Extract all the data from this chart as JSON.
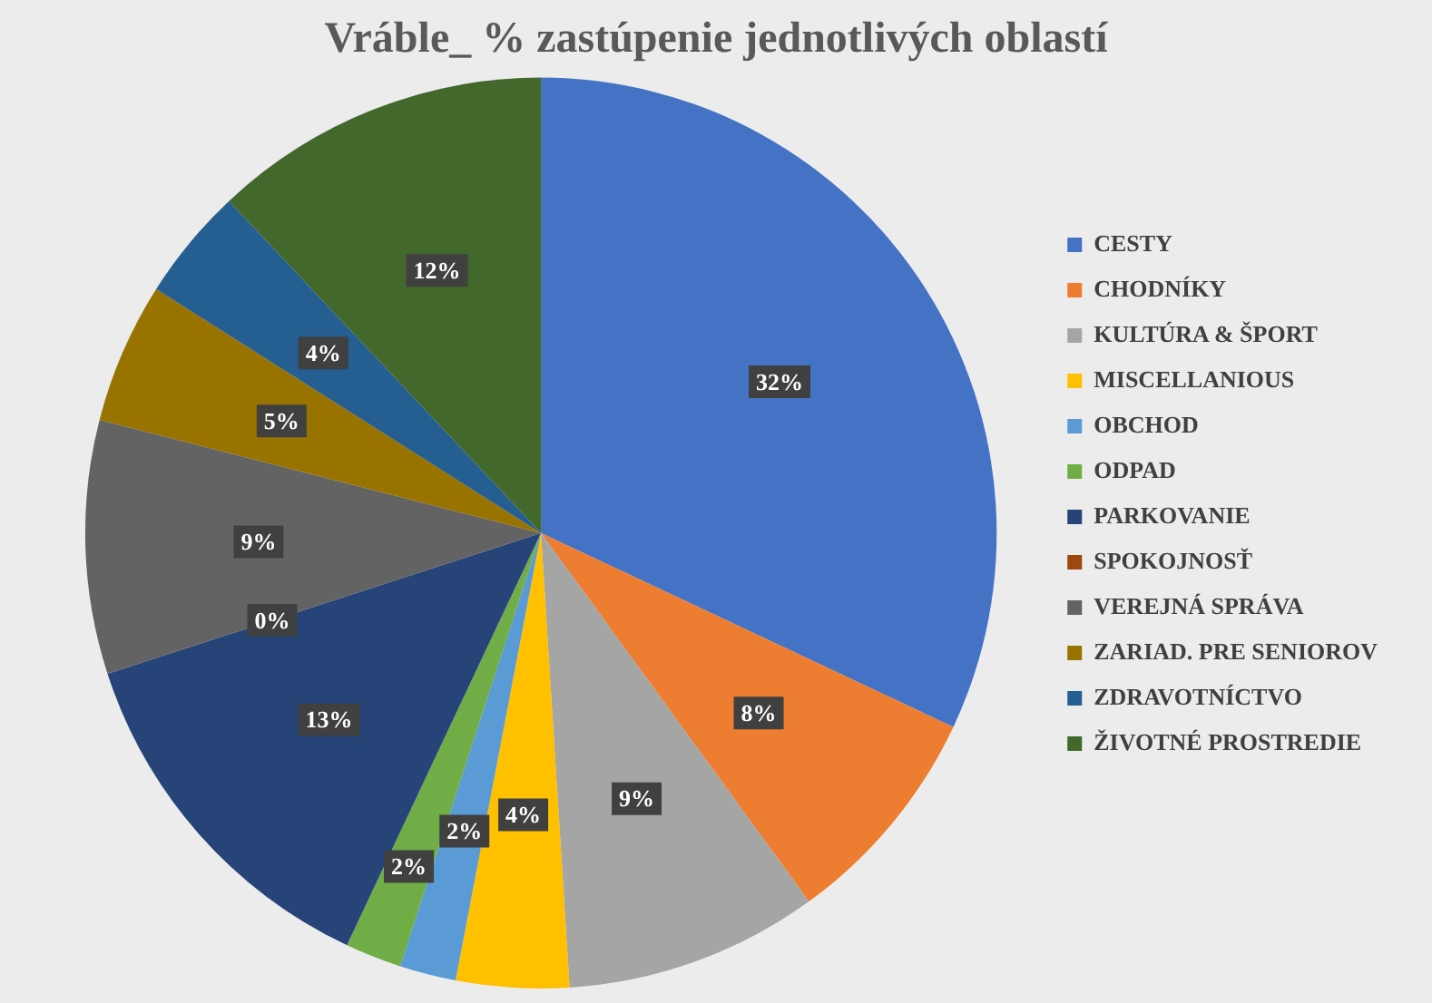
{
  "chart_data": {
    "type": "pie",
    "title": "Vráble_ % zastúpenie jednotlivých oblastí",
    "categories": [
      "CESTY",
      "CHODNÍKY",
      "KULTÚRA & ŠPORT",
      "MISCELLANIOUS",
      "OBCHOD",
      "ODPAD",
      "PARKOVANIE",
      "SPOKOJNOSŤ",
      "VEREJNÁ SPRÁVA",
      "ZARIAD. PRE SENIOROV",
      "ZDRAVOTNÍCTVO",
      "ŽIVOTNÉ PROSTREDIE"
    ],
    "values": [
      32,
      8,
      9,
      4,
      2,
      2,
      13,
      0,
      9,
      5,
      4,
      12
    ],
    "value_labels": [
      "32%",
      "8%",
      "9%",
      "4%",
      "2%",
      "2%",
      "13%",
      "0%",
      "9%",
      "5%",
      "4%",
      "12%"
    ],
    "colors": [
      "#4472c4",
      "#ed7d31",
      "#a5a5a5",
      "#ffc000",
      "#5b9bd5",
      "#70ad47",
      "#264478",
      "#9e480e",
      "#636363",
      "#997300",
      "#255e91",
      "#43682b"
    ],
    "legend": "right"
  }
}
